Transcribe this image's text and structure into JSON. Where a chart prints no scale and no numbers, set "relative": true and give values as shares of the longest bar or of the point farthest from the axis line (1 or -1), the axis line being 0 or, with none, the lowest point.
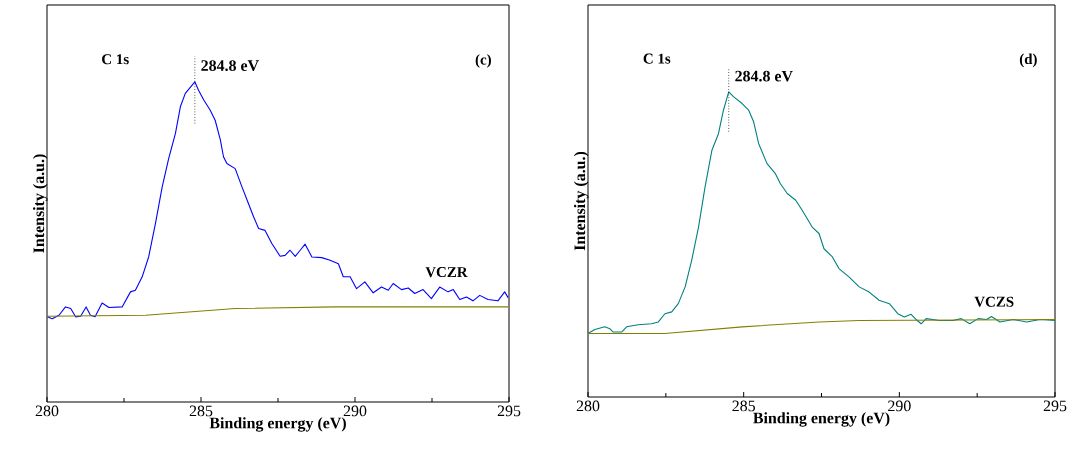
{
  "chart_data": [
    {
      "type": "line",
      "relative": true,
      "xlabel": "Binding energy (eV)",
      "ylabel": "Intensity (a.u.)",
      "xlim": [
        280,
        295
      ],
      "xticks": [
        280,
        285,
        290,
        295
      ],
      "annotations": [
        "C 1s",
        "(c)",
        "284.8 eV"
      ],
      "series": [
        {
          "name": "VCZR",
          "color": "#0000ff",
          "x": [
            280.01,
            280.17,
            280.39,
            280.6,
            280.77,
            280.93,
            281.09,
            281.27,
            281.41,
            281.56,
            281.79,
            282.01,
            282.44,
            282.71,
            282.87,
            283.09,
            283.3,
            283.52,
            283.74,
            283.95,
            284.17,
            284.33,
            284.49,
            284.8,
            284.92,
            285.09,
            285.3,
            285.46,
            285.63,
            285.73,
            285.84,
            286.11,
            286.33,
            286.54,
            286.71,
            286.87,
            287.08,
            287.3,
            287.57,
            287.73,
            287.89,
            288.06,
            288.22,
            288.38,
            288.6,
            288.92,
            289.19,
            289.46,
            289.62,
            289.84,
            290.05,
            290.32,
            290.59,
            290.86,
            291.08,
            291.24,
            291.51,
            291.73,
            291.94,
            292.21,
            292.48,
            292.75,
            293.02,
            293.19,
            293.4,
            293.62,
            293.83,
            294.05,
            294.32,
            294.64,
            294.86,
            294.97
          ],
          "values": [
            0.266,
            0.26,
            0.271,
            0.297,
            0.292,
            0.266,
            0.268,
            0.297,
            0.271,
            0.266,
            0.309,
            0.295,
            0.297,
            0.344,
            0.349,
            0.391,
            0.453,
            0.557,
            0.672,
            0.76,
            0.839,
            0.922,
            0.964,
            1.0,
            0.974,
            0.943,
            0.911,
            0.88,
            0.818,
            0.766,
            0.745,
            0.729,
            0.672,
            0.62,
            0.578,
            0.542,
            0.536,
            0.495,
            0.455,
            0.458,
            0.474,
            0.455,
            0.474,
            0.493,
            0.453,
            0.451,
            0.443,
            0.432,
            0.391,
            0.391,
            0.354,
            0.375,
            0.341,
            0.359,
            0.349,
            0.37,
            0.351,
            0.356,
            0.339,
            0.351,
            0.323,
            0.359,
            0.344,
            0.351,
            0.32,
            0.328,
            0.316,
            0.333,
            0.32,
            0.316,
            0.344,
            0.326
          ]
        },
        {
          "color": "#808000",
          "x": [
            280.0,
            283.2,
            286.11,
            289.35,
            294.97
          ],
          "values": [
            0.268,
            0.271,
            0.292,
            0.297,
            0.297
          ]
        }
      ]
    },
    {
      "type": "line",
      "relative": true,
      "xlabel": "Binding energy (eV)",
      "ylabel": "Intensity (a.u.)",
      "xlim": [
        280,
        295
      ],
      "xticks": [
        280,
        285,
        290,
        295
      ],
      "annotations": [
        "C 1s",
        "(d)",
        "284.8 eV"
      ],
      "series": [
        {
          "name": "VCZS",
          "color": "#008080",
          "x": [
            280.0,
            280.22,
            280.54,
            280.7,
            280.81,
            281.08,
            281.24,
            281.61,
            282.04,
            282.26,
            282.47,
            282.69,
            282.9,
            283.12,
            283.33,
            283.55,
            283.76,
            283.98,
            284.19,
            284.35,
            284.52,
            284.68,
            284.95,
            285.16,
            285.32,
            285.48,
            285.75,
            286.02,
            286.18,
            286.4,
            286.67,
            286.88,
            287.2,
            287.42,
            287.58,
            287.85,
            288.06,
            288.39,
            288.71,
            289.03,
            289.35,
            289.68,
            289.95,
            290.16,
            290.38,
            290.54,
            290.7,
            290.86,
            291.29,
            291.72,
            291.99,
            292.26,
            292.53,
            292.8,
            292.96,
            293.23,
            293.66,
            294.09,
            294.52,
            295.0
          ],
          "values": [
            0.208,
            0.221,
            0.23,
            0.224,
            0.213,
            0.213,
            0.23,
            0.237,
            0.24,
            0.246,
            0.273,
            0.279,
            0.306,
            0.361,
            0.448,
            0.557,
            0.689,
            0.809,
            0.863,
            0.94,
            1.0,
            0.984,
            0.962,
            0.94,
            0.902,
            0.831,
            0.765,
            0.732,
            0.699,
            0.667,
            0.645,
            0.612,
            0.557,
            0.536,
            0.486,
            0.459,
            0.421,
            0.393,
            0.361,
            0.344,
            0.317,
            0.306,
            0.273,
            0.262,
            0.271,
            0.254,
            0.24,
            0.257,
            0.251,
            0.251,
            0.257,
            0.24,
            0.257,
            0.254,
            0.264,
            0.246,
            0.254,
            0.246,
            0.254,
            0.251
          ]
        },
        {
          "color": "#808000",
          "x": [
            280.0,
            282.47,
            284.95,
            287.42,
            288.71,
            295.0
          ],
          "values": [
            0.208,
            0.208,
            0.23,
            0.246,
            0.251,
            0.254
          ]
        }
      ]
    }
  ]
}
